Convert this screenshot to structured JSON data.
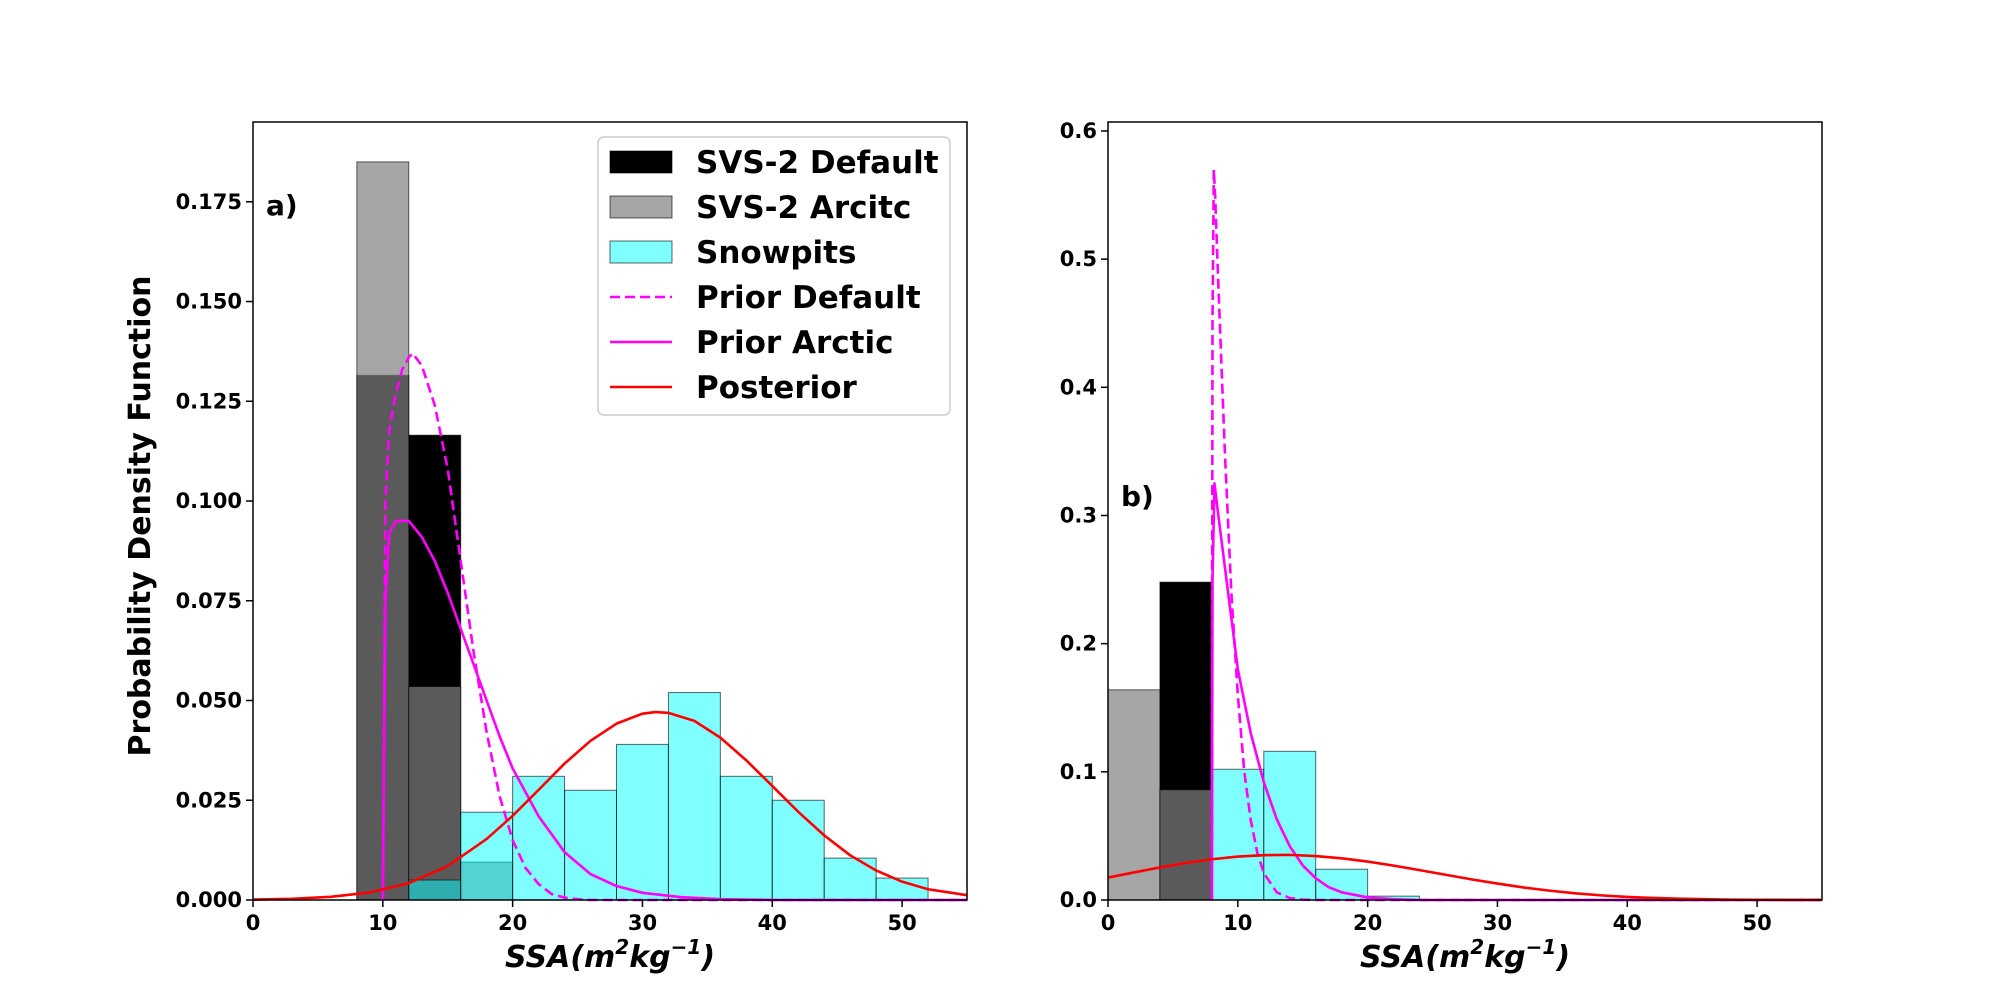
{
  "chart_data": [
    {
      "type": "histogram+line",
      "panel_label": "a)",
      "xlabel_base": "SSA(m",
      "xlabel_exp1": "2",
      "xlabel_mid": "kg",
      "xlabel_exp2": "−1",
      "xlabel_end": ")",
      "ylabel": "Probability Density Function",
      "xlim": [
        0,
        55
      ],
      "ylim": [
        0,
        0.195
      ],
      "xticks": [
        0,
        10,
        20,
        30,
        40,
        50
      ],
      "yticks": [
        0.0,
        0.025,
        0.05,
        0.075,
        0.1,
        0.125,
        0.15,
        0.175
      ],
      "ytick_labels": [
        "0.000",
        "0.025",
        "0.050",
        "0.075",
        "0.100",
        "0.125",
        "0.150",
        "0.175"
      ],
      "histograms": [
        {
          "name": "SVS-2 Default",
          "color": "#000000",
          "opacity": 1.0,
          "bins": [
            [
              8,
              12,
              0.1315
            ],
            [
              12,
              16,
              0.1165
            ]
          ]
        },
        {
          "name": "SVS-2 Arcitc",
          "color": "#808080",
          "opacity": 0.7,
          "bins": [
            [
              8,
              12,
              0.185
            ],
            [
              12,
              16,
              0.0535
            ],
            [
              16,
              20,
              0.0095
            ]
          ]
        },
        {
          "name": "Snowpits",
          "color": "#00ffff",
          "opacity": 0.5,
          "bins": [
            [
              12,
              16,
              0.005
            ],
            [
              16,
              20,
              0.022
            ],
            [
              20,
              24,
              0.031
            ],
            [
              24,
              28,
              0.0275
            ],
            [
              28,
              32,
              0.039
            ],
            [
              32,
              36,
              0.052
            ],
            [
              36,
              40,
              0.031
            ],
            [
              40,
              44,
              0.025
            ],
            [
              44,
              48,
              0.0105
            ],
            [
              48,
              52,
              0.0055
            ]
          ]
        }
      ],
      "lines": [
        {
          "name": "Prior Default",
          "color": "#ff00ff",
          "dash": "dashed",
          "x": [
            10,
            10.2,
            10.5,
            11,
            11.5,
            12,
            12.3,
            13,
            14,
            15,
            16,
            17,
            18,
            19,
            20,
            21,
            22,
            23,
            24,
            25,
            26,
            55
          ],
          "y": [
            0,
            0.1,
            0.118,
            0.127,
            0.133,
            0.136,
            0.137,
            0.134,
            0.124,
            0.108,
            0.085,
            0.062,
            0.042,
            0.026,
            0.015,
            0.008,
            0.004,
            0.0015,
            0.0006,
            0.0002,
            0,
            0
          ]
        },
        {
          "name": "Prior Arctic",
          "color": "#ff00ff",
          "dash": "solid",
          "x": [
            10,
            10.2,
            10.5,
            11,
            12,
            13,
            14,
            15,
            16,
            17,
            18,
            19,
            20,
            22,
            24,
            26,
            28,
            30,
            33,
            36,
            40,
            55
          ],
          "y": [
            0,
            0.075,
            0.092,
            0.095,
            0.095,
            0.091,
            0.085,
            0.077,
            0.068,
            0.059,
            0.05,
            0.041,
            0.033,
            0.021,
            0.012,
            0.0065,
            0.0035,
            0.0018,
            0.0007,
            0.0002,
            0,
            0
          ]
        },
        {
          "name": "Posterior",
          "color": "#ff0000",
          "dash": "solid",
          "x": [
            0,
            3,
            6,
            9,
            12,
            15,
            18,
            20,
            22,
            24,
            26,
            28,
            30,
            31,
            32,
            34,
            36,
            38,
            40,
            42,
            44,
            46,
            48,
            50,
            52,
            55
          ],
          "y": [
            0.0001,
            0.0003,
            0.0008,
            0.0019,
            0.0042,
            0.0085,
            0.0153,
            0.0211,
            0.0276,
            0.0342,
            0.0399,
            0.0442,
            0.0467,
            0.0471,
            0.0469,
            0.0449,
            0.0407,
            0.035,
            0.0286,
            0.0221,
            0.0162,
            0.0112,
            0.0074,
            0.0046,
            0.0027,
            0.0012
          ]
        }
      ],
      "legend": {
        "placement": "upper right",
        "entries": [
          {
            "label": "SVS-2 Default",
            "kind": "patch",
            "color": "#000000",
            "opacity": 1.0
          },
          {
            "label": "SVS-2 Arcitc",
            "kind": "patch",
            "color": "#808080",
            "opacity": 0.7
          },
          {
            "label": "Snowpits",
            "kind": "patch",
            "color": "#00ffff",
            "opacity": 0.5
          },
          {
            "label": "Prior Default",
            "kind": "line",
            "color": "#ff00ff",
            "dash": "dashed"
          },
          {
            "label": "Prior Arctic",
            "kind": "line",
            "color": "#ff00ff",
            "dash": "solid"
          },
          {
            "label": "Posterior",
            "kind": "line",
            "color": "#ff0000",
            "dash": "solid"
          }
        ]
      }
    },
    {
      "type": "histogram+line",
      "panel_label": "b)",
      "xlabel_base": "SSA(m",
      "xlabel_exp1": "2",
      "xlabel_mid": "kg",
      "xlabel_exp2": "−1",
      "xlabel_end": ")",
      "ylabel": "",
      "xlim": [
        0,
        55
      ],
      "ylim": [
        0,
        0.607
      ],
      "xticks": [
        0,
        10,
        20,
        30,
        40,
        50
      ],
      "yticks": [
        0.0,
        0.1,
        0.2,
        0.3,
        0.4,
        0.5,
        0.6
      ],
      "ytick_labels": [
        "0.0",
        "0.1",
        "0.2",
        "0.3",
        "0.4",
        "0.5",
        "0.6"
      ],
      "histograms": [
        {
          "name": "SVS-2 Default",
          "color": "#000000",
          "opacity": 1.0,
          "bins": [
            [
              4,
              8,
              0.248
            ]
          ]
        },
        {
          "name": "SVS-2 Arcitc",
          "color": "#808080",
          "opacity": 0.7,
          "bins": [
            [
              0,
              4,
              0.164
            ],
            [
              4,
              8,
              0.086
            ]
          ]
        },
        {
          "name": "Snowpits",
          "color": "#00ffff",
          "opacity": 0.5,
          "bins": [
            [
              8,
              12,
              0.102
            ],
            [
              12,
              16,
              0.116
            ],
            [
              16,
              20,
              0.024
            ],
            [
              20,
              24,
              0.003
            ]
          ]
        }
      ],
      "lines": [
        {
          "name": "Prior Default",
          "color": "#ff00ff",
          "dash": "dashed",
          "x": [
            8,
            8.05,
            8.15,
            8.25,
            8.5,
            9,
            9.5,
            10,
            10.5,
            11,
            11.5,
            12,
            13,
            14,
            15,
            16,
            55
          ],
          "y": [
            0,
            0.45,
            0.57,
            0.55,
            0.48,
            0.35,
            0.24,
            0.16,
            0.1,
            0.062,
            0.037,
            0.021,
            0.006,
            0.0015,
            0.0003,
            0,
            0
          ]
        },
        {
          "name": "Prior Arctic",
          "color": "#ff00ff",
          "dash": "solid",
          "x": [
            8,
            8.05,
            8.2,
            8.5,
            9,
            9.5,
            10,
            11,
            12,
            13,
            14,
            15,
            16,
            17,
            18,
            20,
            22,
            24,
            55
          ],
          "y": [
            0,
            0.25,
            0.325,
            0.3,
            0.26,
            0.22,
            0.18,
            0.13,
            0.092,
            0.063,
            0.042,
            0.027,
            0.017,
            0.01,
            0.006,
            0.002,
            0.0006,
            0,
            0
          ]
        },
        {
          "name": "Posterior",
          "color": "#ff0000",
          "dash": "solid",
          "x": [
            0,
            2,
            4,
            6,
            8,
            10,
            12,
            14,
            16,
            18,
            20,
            22,
            24,
            26,
            28,
            30,
            32,
            34,
            36,
            38,
            40,
            42,
            44,
            46,
            48,
            50,
            55
          ],
          "y": [
            0.0175,
            0.0215,
            0.0254,
            0.0289,
            0.0318,
            0.0339,
            0.035,
            0.0352,
            0.0343,
            0.0325,
            0.03,
            0.0268,
            0.0233,
            0.0197,
            0.0161,
            0.0128,
            0.0098,
            0.0073,
            0.0052,
            0.0036,
            0.0024,
            0.0016,
            0.001,
            0.0006,
            0.0003,
            0.0002,
            0.0001
          ]
        }
      ]
    }
  ]
}
